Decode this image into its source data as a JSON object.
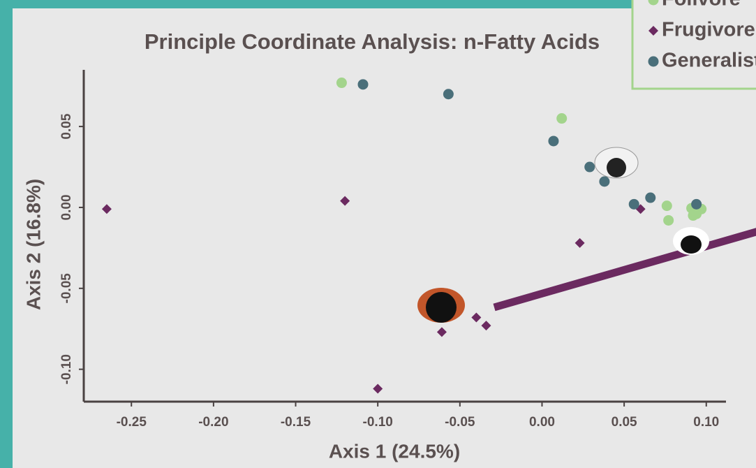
{
  "chart_data": {
    "type": "scatter",
    "title": "Principle Coordinate Analysis: n-Fatty Acids",
    "x_label": "Axis 1 (24.5%)",
    "y_label": "Axis 2 (16.8%)",
    "xlim": [
      -0.279,
      0.112
    ],
    "ylim": [
      -0.12,
      0.085
    ],
    "xticks": [
      -0.25,
      {
        "value": -0.2,
        "label": "-0.20"
      },
      -0.15,
      {
        "value": -0.1,
        "label": "-0.10"
      },
      -0.05,
      {
        "value": 0,
        "label": "0.00"
      },
      0.05,
      {
        "value": 0.1,
        "label": "0.10"
      }
    ],
    "yticks": [
      {
        "value": -0.1,
        "label": "-0.10"
      },
      -0.05,
      {
        "value": 0,
        "label": "0.00"
      },
      0.05
    ],
    "legend": "upper right",
    "series": [
      {
        "name": "Folivore",
        "color": "#a3d48c",
        "marker": "circle",
        "x": [
          -0.122,
          0.012,
          0.076,
          0.077,
          0.091,
          0.092,
          0.097,
          0.094
        ],
        "values": [
          0.077,
          0.055,
          0.001,
          -0.008,
          -0.0005,
          -0.005,
          -0.001,
          -0.004
        ]
      },
      {
        "name": "Frugivore",
        "color": "#6b2a60",
        "marker": "diamond",
        "x": [
          -0.265,
          -0.12,
          0.06,
          0.023,
          -0.04,
          -0.034,
          -0.061,
          -0.1
        ],
        "values": [
          -0.001,
          0.004,
          -0.001,
          -0.022,
          -0.068,
          -0.073,
          -0.077,
          -0.112
        ]
      },
      {
        "name": "Generalist",
        "color": "#4a6f7a",
        "marker": "circle",
        "x": [
          -0.109,
          -0.057,
          0.007,
          0.029,
          0.038,
          0.056,
          0.066,
          0.094
        ],
        "values": [
          0.076,
          0.07,
          0.041,
          0.025,
          0.016,
          0.002,
          0.006,
          0.002
        ]
      }
    ]
  }
}
